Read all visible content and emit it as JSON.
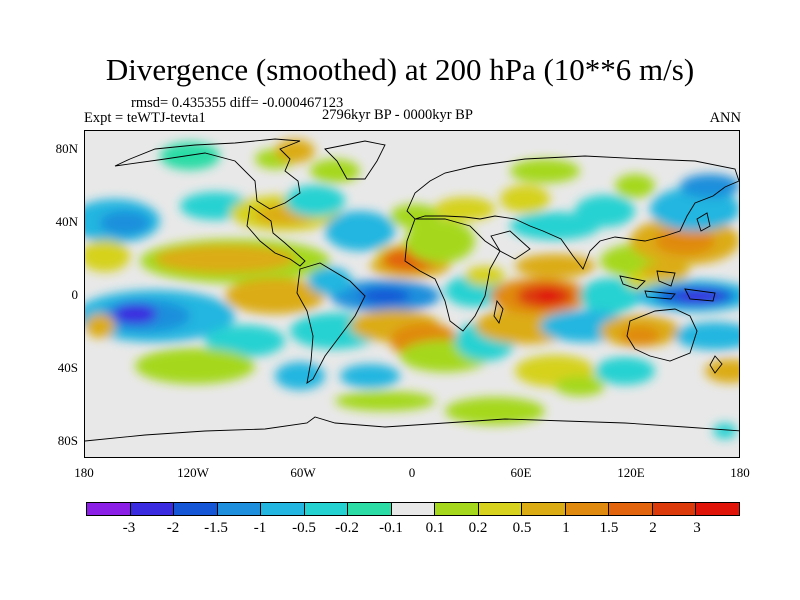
{
  "figure": {
    "title": "Divergence (smoothed) at 200 hPa (10**6 m/s)",
    "stats": "rmsd= 0.435355 diff= -0.000467123",
    "experiment": "Expt = teWTJ-tevta1",
    "period": "2796kyr BP - 0000kyr BP",
    "season": "ANN"
  },
  "axes": {
    "y_ticks": [
      "80N",
      "40N",
      "0",
      "40S",
      "80S"
    ],
    "x_ticks": [
      "180",
      "120W",
      "60W",
      "0",
      "60E",
      "120E",
      "180"
    ]
  },
  "colorbar": {
    "labels": [
      "-3",
      "-2",
      "-1.5",
      "-1",
      "-0.5",
      "-0.2",
      "-0.1",
      "0.1",
      "0.2",
      "0.5",
      "1",
      "1.5",
      "2",
      "3"
    ],
    "colors": [
      "#8b1fe6",
      "#3a2be0",
      "#1556d6",
      "#1e8fdc",
      "#23b6e0",
      "#25d2d2",
      "#2bdca5",
      "#e8e8e8",
      "#a5d81c",
      "#d6d21e",
      "#dcac14",
      "#e08a10",
      "#e2640c",
      "#dc3a0a",
      "#e01408"
    ]
  }
}
